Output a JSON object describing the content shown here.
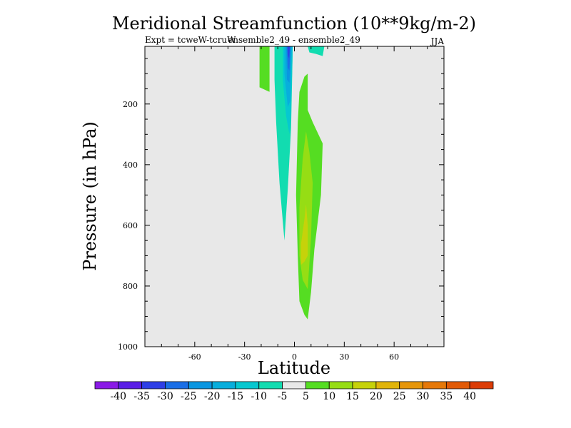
{
  "chart_data": {
    "type": "contour",
    "title": "Meridional Streamfunction (10**9kg/m-2)",
    "subtitle_left": "Expt = tcweW-tcruW",
    "subtitle_center": "ensemble2_49 - ensemble2_49",
    "subtitle_right": "JJA",
    "xlabel": "Latitude",
    "ylabel": "Pressure (in hPa)",
    "xlim": [
      -90,
      90
    ],
    "ylim": [
      1000,
      10
    ],
    "y_inverted": true,
    "x_ticks": [
      -60,
      -30,
      0,
      30,
      60
    ],
    "x_tick_labels": [
      "-60",
      "-30",
      "0",
      "30",
      "60"
    ],
    "y_ticks": [
      200,
      400,
      600,
      800,
      1000
    ],
    "y_tick_labels": [
      "200",
      "400",
      "600",
      "800",
      "1000"
    ],
    "background_level": [
      -5,
      5
    ],
    "colorbar": {
      "labels": [
        "-40",
        "-35",
        "-30",
        "-25",
        "-20",
        "-15",
        "-10",
        "-5",
        "5",
        "10",
        "15",
        "20",
        "25",
        "30",
        "35",
        "40"
      ],
      "colors": [
        "#8a1ae6",
        "#5a1ee6",
        "#2e3ee6",
        "#1a6ee6",
        "#0a96e0",
        "#08aedc",
        "#06c8d0",
        "#12dcb0",
        "#e8e8e8",
        "#55dd22",
        "#96dd14",
        "#c6d20a",
        "#e0b40a",
        "#e6960a",
        "#e67808",
        "#e25a06",
        "#dc3c06"
      ]
    },
    "regions": [
      {
        "name": "positive-5-10-north-upper",
        "level": [
          5,
          10
        ],
        "color": "#55dd22",
        "polygon": [
          [
            -21,
            10
          ],
          [
            -15,
            10
          ],
          [
            -15,
            160
          ],
          [
            -21,
            145
          ]
        ]
      },
      {
        "name": "negative-10-5-top-right",
        "level": [
          -10,
          -5
        ],
        "color": "#12dcb0",
        "polygon": [
          [
            8,
            10
          ],
          [
            18,
            10
          ],
          [
            17,
            42
          ],
          [
            13,
            35
          ],
          [
            9,
            30
          ]
        ]
      },
      {
        "name": "negative-10-5-main",
        "level": [
          -10,
          -5
        ],
        "color": "#12dcb0",
        "polygon": [
          [
            -12,
            10
          ],
          [
            -1,
            10
          ],
          [
            -2,
            280
          ],
          [
            -4,
            480
          ],
          [
            -6,
            650
          ],
          [
            -9,
            460
          ],
          [
            -11,
            260
          ],
          [
            -12,
            120
          ]
        ]
      },
      {
        "name": "negative-15-10",
        "level": [
          -15,
          -10
        ],
        "color": "#06c8d0",
        "polygon": [
          [
            -7,
            10
          ],
          [
            -1,
            10
          ],
          [
            -2,
            220
          ],
          [
            -3,
            300
          ],
          [
            -5,
            240
          ],
          [
            -7,
            120
          ]
        ]
      },
      {
        "name": "negative-20-15",
        "level": [
          -20,
          -15
        ],
        "color": "#08aedc",
        "polygon": [
          [
            -6,
            10
          ],
          [
            -1.5,
            10
          ],
          [
            -2.5,
            190
          ],
          [
            -4,
            210
          ],
          [
            -6,
            100
          ]
        ]
      },
      {
        "name": "negative-25-20",
        "level": [
          -25,
          -20
        ],
        "color": "#0a96e0",
        "polygon": [
          [
            -5,
            10
          ],
          [
            -2,
            10
          ],
          [
            -3,
            130
          ],
          [
            -4.5,
            120
          ]
        ]
      },
      {
        "name": "negative-30-25",
        "level": [
          -30,
          -25
        ],
        "color": "#1a6ee6",
        "polygon": [
          [
            -4.5,
            10
          ],
          [
            -2.5,
            10
          ],
          [
            -3,
            90
          ],
          [
            -4,
            80
          ]
        ]
      },
      {
        "name": "negative-35-30",
        "level": [
          -35,
          -30
        ],
        "color": "#2e3ee6",
        "polygon": [
          [
            -4,
            10
          ],
          [
            -2.8,
            10
          ],
          [
            -3.2,
            50
          ],
          [
            -3.8,
            40
          ]
        ]
      },
      {
        "name": "positive-5-10-main",
        "level": [
          5,
          10
        ],
        "color": "#55dd22",
        "polygon": [
          [
            2,
            260
          ],
          [
            3,
            160
          ],
          [
            6,
            110
          ],
          [
            8,
            100
          ],
          [
            8,
            220
          ],
          [
            11,
            260
          ],
          [
            17,
            330
          ],
          [
            16,
            500
          ],
          [
            12,
            680
          ],
          [
            10,
            820
          ],
          [
            8,
            910
          ],
          [
            6,
            895
          ],
          [
            3,
            850
          ],
          [
            2,
            700
          ],
          [
            1,
            500
          ]
        ]
      },
      {
        "name": "positive-10-15",
        "level": [
          10,
          15
        ],
        "color": "#96dd14",
        "polygon": [
          [
            3,
            540
          ],
          [
            5,
            380
          ],
          [
            7,
            290
          ],
          [
            9,
            360
          ],
          [
            11,
            460
          ],
          [
            10,
            640
          ],
          [
            8,
            810
          ],
          [
            5,
            780
          ],
          [
            3,
            700
          ]
        ]
      },
      {
        "name": "positive-15-20",
        "level": [
          15,
          20
        ],
        "color": "#c6d20a",
        "polygon": [
          [
            4,
            660
          ],
          [
            6,
            580
          ],
          [
            7,
            530
          ],
          [
            8,
            600
          ],
          [
            8,
            700
          ],
          [
            6,
            720
          ],
          [
            4,
            730
          ]
        ]
      }
    ]
  }
}
